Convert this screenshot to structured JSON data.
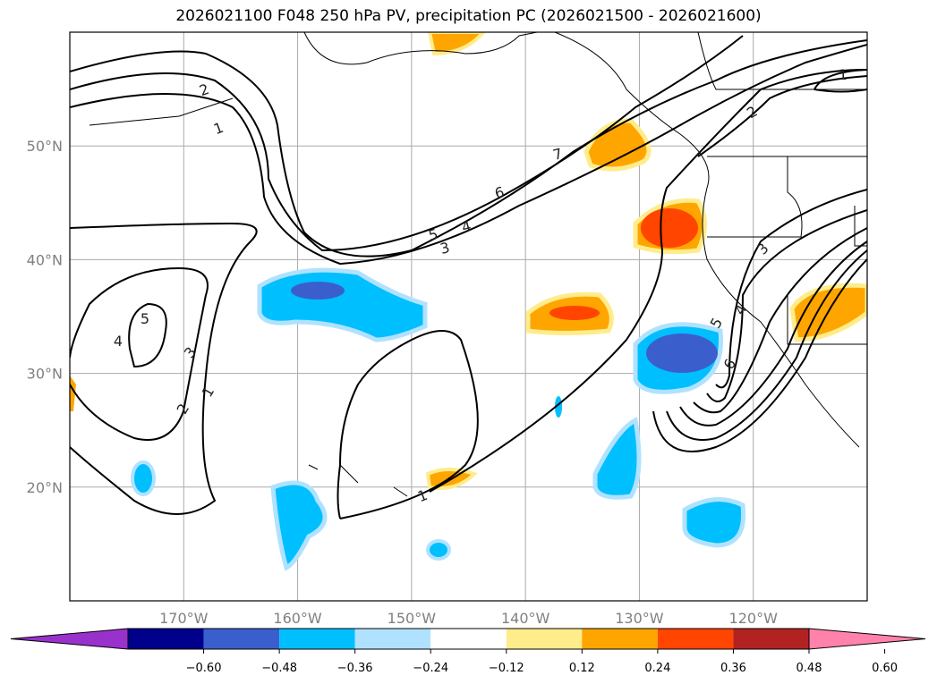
{
  "title": "2026021100 F048 250 hPa PV, precipitation PC (2026021500 - 2026021600)",
  "map": {
    "extent": {
      "lon": [
        -180,
        -110
      ],
      "lat": [
        10,
        60
      ]
    },
    "lon_ticks": [
      {
        "value": -170,
        "label": "170°W"
      },
      {
        "value": -160,
        "label": "160°W"
      },
      {
        "value": -150,
        "label": "150°W"
      },
      {
        "value": -140,
        "label": "140°W"
      },
      {
        "value": -130,
        "label": "130°W"
      },
      {
        "value": -120,
        "label": "120°W"
      }
    ],
    "lat_ticks": [
      {
        "value": 50,
        "label": "50°N"
      },
      {
        "value": 40,
        "label": "40°N"
      },
      {
        "value": 30,
        "label": "30°N"
      },
      {
        "value": 20,
        "label": "20°N"
      }
    ],
    "contour_labels": [
      "2",
      "1",
      "7",
      "6",
      "5",
      "4",
      "3",
      "5",
      "4",
      "3",
      "2",
      "1",
      "1",
      "1",
      "2",
      "3",
      "4",
      "5",
      "6"
    ]
  },
  "colorbar": {
    "colors": [
      "#9932cc",
      "#00008b",
      "#3a5fcd",
      "#00bfff",
      "#b0e2ff",
      "#ffffff",
      "#ffec8b",
      "#ffa500",
      "#ff4500",
      "#b22222",
      "#ff82ab"
    ],
    "tick_labels": [
      "−0.60",
      "−0.48",
      "−0.36",
      "−0.24",
      "−0.12",
      "0.12",
      "0.24",
      "0.36",
      "0.48",
      "0.60"
    ]
  }
}
